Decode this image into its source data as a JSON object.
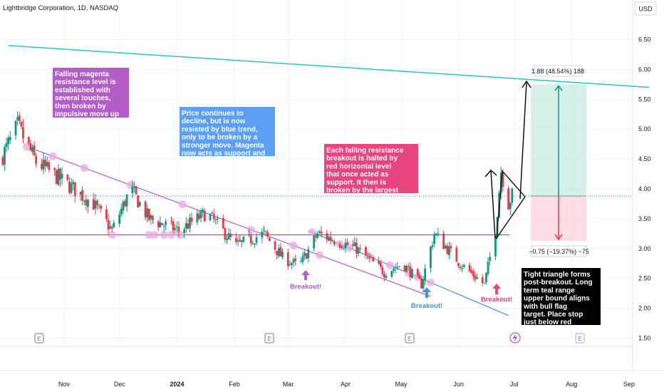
{
  "header": {
    "symbol": "Lightbridge Corporation, 1D, NASDAQ"
  },
  "currency_button": {
    "label": "USD"
  },
  "colors": {
    "up": "#089981",
    "down": "#f23645",
    "magenta": "#b45bc2",
    "blue": "#4a90e2",
    "red_level": "#e83f6f",
    "teal": "#26c6c6",
    "touch": "#e5a8e0",
    "box_magenta": "#b35dc9",
    "box_blue": "#5c9ff5",
    "box_pink": "#e8457e",
    "box_black": "#000000"
  },
  "chart_data": {
    "type": "candlestick",
    "x_labels": [
      "Nov",
      "Dec",
      "2024",
      "Feb",
      "Mar",
      "Apr",
      "May",
      "Jun",
      "Jul",
      "Aug",
      "Sep"
    ],
    "y_ticks": [
      1.5,
      2.0,
      2.5,
      3.0,
      3.5,
      4.0,
      4.5,
      5.0,
      5.5,
      6.0,
      6.5
    ],
    "ylim": [
      1.45,
      6.85
    ],
    "last_price_level": 3.88,
    "horizontal_level": 3.23,
    "lines": [
      {
        "name": "magenta-resistance",
        "from": {
          "date": "2023-10-20",
          "price": 4.65
        },
        "to": {
          "date": "2024-05-20",
          "price": 2.2
        }
      },
      {
        "name": "blue-trend",
        "from": {
          "date": "2024-03-15",
          "price": 3.3
        },
        "to": {
          "date": "2024-07-01",
          "price": 1.88
        }
      },
      {
        "name": "teal-upper-bound",
        "from": {
          "date": "2023-10-05",
          "price": 6.4
        },
        "to": {
          "date": "2024-09-15",
          "price": 5.7
        }
      }
    ],
    "position": {
      "top_label": "1.88 (48.54%) 188",
      "bottom_label": "−0.75 (−19.37%) −75",
      "entry": 3.88,
      "target": 5.75,
      "stop": 3.13
    },
    "breakouts": [
      "Breakout!",
      "Breakout!",
      "Breakout!"
    ],
    "annotations": [
      "Falling magenta resistance level is established with several touches, then broken by impulsive move up",
      "Price continues to decline, but is now resisted by blue trend, only to be broken by a stronger move. Magenta now acts as support and is not crossed.",
      "Each falling resistance breakout is halted by red horizontal level that once acted as support. It then is broken by the largest move yet.",
      "Tight triangle forms post-breakout. Long term teal range upper bound aligns with bull flag target. Place stop just below red horizontal level"
    ],
    "earnings_marker": "E",
    "anchors": [
      {
        "date": "2023-10-01",
        "price": 4.5
      },
      {
        "date": "2023-10-10",
        "price": 5.05
      },
      {
        "date": "2023-10-20",
        "price": 4.45
      },
      {
        "date": "2023-11-05",
        "price": 4.1
      },
      {
        "date": "2023-11-20",
        "price": 3.75
      },
      {
        "date": "2023-11-30",
        "price": 3.3
      },
      {
        "date": "2023-12-10",
        "price": 4.0
      },
      {
        "date": "2023-12-20",
        "price": 3.5
      },
      {
        "date": "2024-01-05",
        "price": 3.3
      },
      {
        "date": "2024-01-20",
        "price": 3.6
      },
      {
        "date": "2024-02-05",
        "price": 3.05
      },
      {
        "date": "2024-02-20",
        "price": 3.25
      },
      {
        "date": "2024-03-01",
        "price": 2.85
      },
      {
        "date": "2024-03-10",
        "price": 2.7
      },
      {
        "date": "2024-03-20",
        "price": 3.25
      },
      {
        "date": "2024-04-10",
        "price": 3.0
      },
      {
        "date": "2024-04-25",
        "price": 2.6
      },
      {
        "date": "2024-05-05",
        "price": 2.75
      },
      {
        "date": "2024-05-15",
        "price": 2.4
      },
      {
        "date": "2024-05-22",
        "price": 3.25
      },
      {
        "date": "2024-06-05",
        "price": 2.75
      },
      {
        "date": "2024-06-18",
        "price": 2.4
      },
      {
        "date": "2024-06-24",
        "price": 3.3
      },
      {
        "date": "2024-06-27",
        "price": 4.3
      },
      {
        "date": "2024-07-01",
        "price": 3.75
      },
      {
        "date": "2024-07-03",
        "price": 3.9
      }
    ]
  }
}
